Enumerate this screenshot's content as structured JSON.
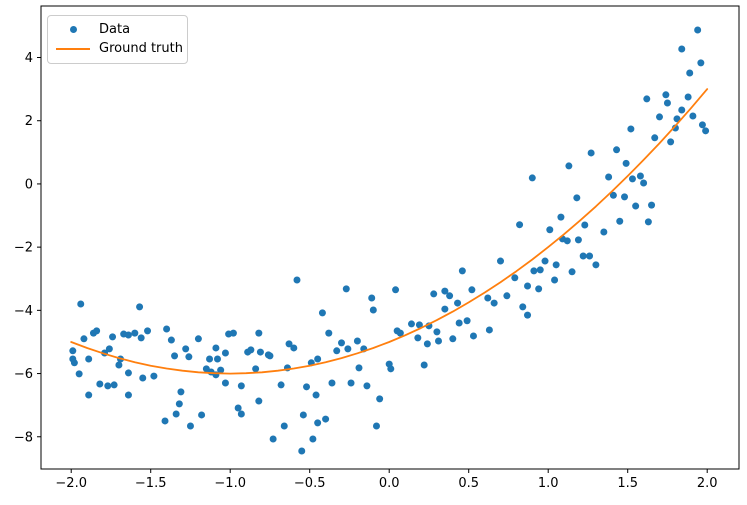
{
  "figure": {
    "background_color": "#ffffff",
    "plot_border_color": "#000000",
    "tick_color": "#000000",
    "text_color": "#000000"
  },
  "legend": {
    "items": [
      {
        "label": "Data",
        "marker": "dot-icon",
        "color": "#1f77b4"
      },
      {
        "label": "Ground truth",
        "marker": "line-icon",
        "color": "#ff7f0e"
      }
    ]
  },
  "chart_data": {
    "type": "scatter",
    "title": "",
    "xlabel": "",
    "ylabel": "",
    "grid": false,
    "legend_position": "upper left",
    "xlim": [
      -2.19,
      2.2
    ],
    "ylim": [
      -9.02,
      5.63
    ],
    "x_ticks": [
      -2.0,
      -1.5,
      -1.0,
      -0.5,
      0.0,
      0.5,
      1.0,
      1.5,
      2.0
    ],
    "x_tick_labels": [
      "−2.0",
      "−1.5",
      "−1.0",
      "−0.5",
      "0.0",
      "0.5",
      "1.0",
      "1.5",
      "2.0"
    ],
    "y_ticks": [
      -8,
      -6,
      -4,
      -2,
      0,
      2,
      4
    ],
    "y_tick_labels": [
      "−8",
      "−6",
      "−4",
      "−2",
      "0",
      "2",
      "4"
    ],
    "series": [
      {
        "name": "Data",
        "type": "scatter",
        "color": "#1f77b4",
        "marker_radius": 3.5,
        "points": [
          [
            -1.99,
            -5.28
          ],
          [
            -1.99,
            -5.54
          ],
          [
            -1.98,
            -5.66
          ],
          [
            -1.95,
            -6.01
          ],
          [
            -1.94,
            -3.8
          ],
          [
            -1.92,
            -4.9
          ],
          [
            -1.89,
            -5.54
          ],
          [
            -1.89,
            -6.68
          ],
          [
            -1.86,
            -4.72
          ],
          [
            -1.84,
            -4.65
          ],
          [
            -1.82,
            -6.33
          ],
          [
            -1.79,
            -5.35
          ],
          [
            -1.77,
            -6.39
          ],
          [
            -1.76,
            -5.22
          ],
          [
            -1.74,
            -4.84
          ],
          [
            -1.73,
            -6.36
          ],
          [
            -1.7,
            -5.73
          ],
          [
            -1.69,
            -5.54
          ],
          [
            -1.67,
            -4.75
          ],
          [
            -1.64,
            -4.78
          ],
          [
            -1.64,
            -5.98
          ],
          [
            -1.64,
            -6.68
          ],
          [
            -1.6,
            -4.72
          ],
          [
            -1.57,
            -3.89
          ],
          [
            -1.56,
            -4.87
          ],
          [
            -1.55,
            -6.14
          ],
          [
            -1.52,
            -4.65
          ],
          [
            -1.48,
            -6.08
          ],
          [
            -1.41,
            -7.5
          ],
          [
            -1.4,
            -4.59
          ],
          [
            -1.37,
            -4.94
          ],
          [
            -1.35,
            -5.44
          ],
          [
            -1.34,
            -7.28
          ],
          [
            -1.32,
            -6.96
          ],
          [
            -1.31,
            -6.58
          ],
          [
            -1.28,
            -5.22
          ],
          [
            -1.26,
            -5.47
          ],
          [
            -1.25,
            -7.66
          ],
          [
            -1.2,
            -4.9
          ],
          [
            -1.18,
            -7.31
          ],
          [
            -1.15,
            -5.85
          ],
          [
            -1.13,
            -5.54
          ],
          [
            -1.12,
            -5.95
          ],
          [
            -1.09,
            -5.19
          ],
          [
            -1.09,
            -6.04
          ],
          [
            -1.08,
            -5.54
          ],
          [
            -1.06,
            -5.89
          ],
          [
            -1.03,
            -5.35
          ],
          [
            -1.03,
            -6.3
          ],
          [
            -1.01,
            -4.75
          ],
          [
            -0.98,
            -4.72
          ],
          [
            -0.95,
            -7.09
          ],
          [
            -0.93,
            -7.28
          ],
          [
            -0.93,
            -6.39
          ],
          [
            -0.89,
            -5.32
          ],
          [
            -0.87,
            -5.25
          ],
          [
            -0.84,
            -5.85
          ],
          [
            -0.82,
            -6.87
          ],
          [
            -0.82,
            -4.72
          ],
          [
            -0.81,
            -5.32
          ],
          [
            -0.76,
            -5.41
          ],
          [
            -0.75,
            -5.44
          ],
          [
            -0.73,
            -8.07
          ],
          [
            -0.68,
            -6.36
          ],
          [
            -0.66,
            -7.66
          ],
          [
            -0.64,
            -5.82
          ],
          [
            -0.63,
            -5.06
          ],
          [
            -0.6,
            -5.19
          ],
          [
            -0.58,
            -3.04
          ],
          [
            -0.55,
            -8.45
          ],
          [
            -0.54,
            -7.31
          ],
          [
            -0.52,
            -6.42
          ],
          [
            -0.49,
            -5.66
          ],
          [
            -0.48,
            -8.07
          ],
          [
            -0.46,
            -6.68
          ],
          [
            -0.45,
            -5.54
          ],
          [
            -0.45,
            -7.56
          ],
          [
            -0.42,
            -4.08
          ],
          [
            -0.4,
            -7.44
          ],
          [
            -0.38,
            -4.72
          ],
          [
            -0.36,
            -6.3
          ],
          [
            -0.33,
            -5.28
          ],
          [
            -0.3,
            -5.03
          ],
          [
            -0.27,
            -3.32
          ],
          [
            -0.26,
            -5.22
          ],
          [
            -0.24,
            -6.3
          ],
          [
            -0.2,
            -4.97
          ],
          [
            -0.19,
            -5.82
          ],
          [
            -0.16,
            -5.22
          ],
          [
            -0.14,
            -6.39
          ],
          [
            -0.11,
            -3.61
          ],
          [
            -0.1,
            -3.99
          ],
          [
            -0.08,
            -7.66
          ],
          [
            -0.06,
            -6.8
          ],
          [
            0.0,
            -5.7
          ],
          [
            0.01,
            -5.85
          ],
          [
            0.04,
            -3.35
          ],
          [
            0.05,
            -4.65
          ],
          [
            0.07,
            -4.72
          ],
          [
            0.14,
            -4.43
          ],
          [
            0.18,
            -4.87
          ],
          [
            0.19,
            -4.46
          ],
          [
            0.22,
            -5.73
          ],
          [
            0.24,
            -5.06
          ],
          [
            0.25,
            -4.49
          ],
          [
            0.28,
            -3.48
          ],
          [
            0.3,
            -4.68
          ],
          [
            0.31,
            -4.97
          ],
          [
            0.35,
            -3.39
          ],
          [
            0.35,
            -3.96
          ],
          [
            0.38,
            -3.54
          ],
          [
            0.4,
            -4.9
          ],
          [
            0.43,
            -3.77
          ],
          [
            0.44,
            -4.4
          ],
          [
            0.46,
            -2.75
          ],
          [
            0.49,
            -4.33
          ],
          [
            0.52,
            -3.35
          ],
          [
            0.53,
            -4.81
          ],
          [
            0.62,
            -3.61
          ],
          [
            0.63,
            -4.62
          ],
          [
            0.66,
            -3.77
          ],
          [
            0.7,
            -2.44
          ],
          [
            0.74,
            -3.54
          ],
          [
            0.79,
            -2.97
          ],
          [
            0.82,
            -1.29
          ],
          [
            0.84,
            -3.89
          ],
          [
            0.87,
            -3.23
          ],
          [
            0.87,
            -4.15
          ],
          [
            0.9,
            0.19
          ],
          [
            0.91,
            -2.75
          ],
          [
            0.94,
            -3.32
          ],
          [
            0.95,
            -2.72
          ],
          [
            0.98,
            -2.44
          ],
          [
            1.01,
            -1.45
          ],
          [
            1.04,
            -3.04
          ],
          [
            1.05,
            -2.56
          ],
          [
            1.08,
            -1.05
          ],
          [
            1.09,
            -1.74
          ],
          [
            1.12,
            -1.8
          ],
          [
            1.13,
            0.57
          ],
          [
            1.15,
            -2.78
          ],
          [
            1.18,
            -0.44
          ],
          [
            1.19,
            -1.77
          ],
          [
            1.22,
            -2.28
          ],
          [
            1.23,
            -1.3
          ],
          [
            1.26,
            -2.28
          ],
          [
            1.27,
            0.98
          ],
          [
            1.3,
            -2.56
          ],
          [
            1.35,
            -1.52
          ],
          [
            1.38,
            0.22
          ],
          [
            1.41,
            -0.36
          ],
          [
            1.43,
            1.08
          ],
          [
            1.45,
            -1.18
          ],
          [
            1.48,
            -0.41
          ],
          [
            1.49,
            0.65
          ],
          [
            1.52,
            1.74
          ],
          [
            1.53,
            0.16
          ],
          [
            1.55,
            -0.7
          ],
          [
            1.58,
            0.25
          ],
          [
            1.6,
            0.03
          ],
          [
            1.62,
            2.69
          ],
          [
            1.63,
            -1.2
          ],
          [
            1.65,
            -0.67
          ],
          [
            1.67,
            1.46
          ],
          [
            1.7,
            2.12
          ],
          [
            1.74,
            2.82
          ],
          [
            1.75,
            2.56
          ],
          [
            1.77,
            1.33
          ],
          [
            1.8,
            1.77
          ],
          [
            1.81,
            2.06
          ],
          [
            1.84,
            4.27
          ],
          [
            1.84,
            2.34
          ],
          [
            1.88,
            2.75
          ],
          [
            1.89,
            3.51
          ],
          [
            1.91,
            2.15
          ],
          [
            1.94,
            4.87
          ],
          [
            1.96,
            3.83
          ],
          [
            1.97,
            1.87
          ],
          [
            1.99,
            1.68
          ]
        ]
      },
      {
        "name": "Ground truth",
        "type": "line",
        "color": "#ff7f0e",
        "line_width": 1.8,
        "points": [
          [
            -2.0,
            -5.0
          ],
          [
            -1.9,
            -5.19
          ],
          [
            -1.8,
            -5.36
          ],
          [
            -1.7,
            -5.51
          ],
          [
            -1.6,
            -5.64
          ],
          [
            -1.5,
            -5.75
          ],
          [
            -1.4,
            -5.84
          ],
          [
            -1.3,
            -5.91
          ],
          [
            -1.2,
            -5.96
          ],
          [
            -1.1,
            -5.99
          ],
          [
            -1.0,
            -6.0
          ],
          [
            -0.9,
            -5.99
          ],
          [
            -0.8,
            -5.96
          ],
          [
            -0.7,
            -5.91
          ],
          [
            -0.6,
            -5.84
          ],
          [
            -0.5,
            -5.75
          ],
          [
            -0.4,
            -5.64
          ],
          [
            -0.3,
            -5.51
          ],
          [
            -0.2,
            -5.36
          ],
          [
            -0.1,
            -5.19
          ],
          [
            0.0,
            -5.0
          ],
          [
            0.1,
            -4.79
          ],
          [
            0.2,
            -4.56
          ],
          [
            0.3,
            -4.31
          ],
          [
            0.4,
            -4.04
          ],
          [
            0.5,
            -3.75
          ],
          [
            0.6,
            -3.44
          ],
          [
            0.7,
            -3.11
          ],
          [
            0.8,
            -2.76
          ],
          [
            0.9,
            -2.39
          ],
          [
            1.0,
            -2.0
          ],
          [
            1.1,
            -1.59
          ],
          [
            1.2,
            -1.16
          ],
          [
            1.3,
            -0.71
          ],
          [
            1.4,
            -0.24
          ],
          [
            1.5,
            0.25
          ],
          [
            1.6,
            0.76
          ],
          [
            1.7,
            1.29
          ],
          [
            1.8,
            1.84
          ],
          [
            1.9,
            2.41
          ],
          [
            2.0,
            3.0
          ]
        ]
      }
    ]
  }
}
